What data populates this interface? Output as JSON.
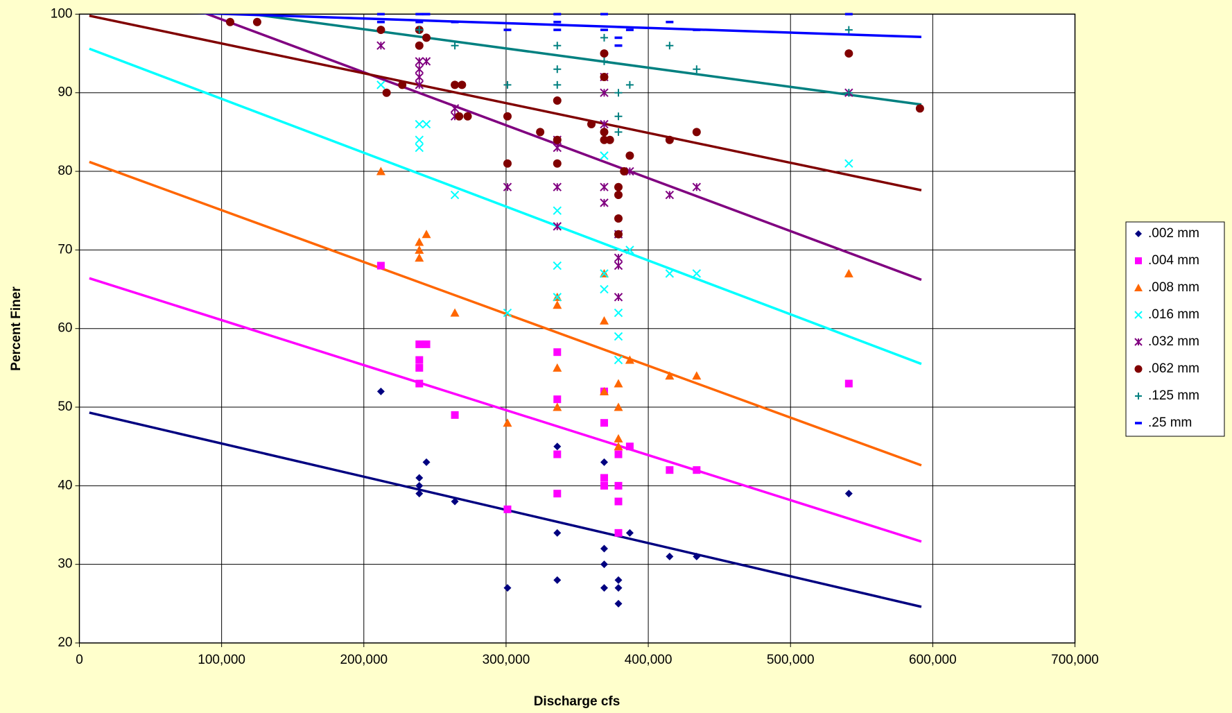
{
  "chart_data": {
    "type": "scatter",
    "x_label": "Discharge cfs",
    "y_label": "Percent Finer",
    "xlim": [
      0,
      700000
    ],
    "xticks": [
      0,
      {
        "value": 100000,
        "label": "100,000"
      },
      {
        "value": 200000,
        "label": "200,000"
      },
      {
        "value": 300000,
        "label": "300,000"
      },
      {
        "value": 400000,
        "label": "400,000"
      },
      {
        "value": 500000,
        "label": "500,000"
      },
      {
        "value": 600000,
        "label": "600,000"
      },
      {
        "value": 700000,
        "label": "700,000"
      }
    ],
    "ylim": [
      20,
      100
    ],
    "yticks": [
      20,
      30,
      40,
      50,
      60,
      70,
      80,
      90,
      100
    ],
    "grid": true,
    "legend": "right",
    "series": [
      {
        "name": ".002 mm",
        "color": "#000080",
        "marker": "diamond",
        "x": [
          212000,
          239000,
          239000,
          239000,
          244000,
          264000,
          301000,
          336000,
          336000,
          336000,
          369000,
          369000,
          369000,
          369000,
          379000,
          379000,
          379000,
          387000,
          415000,
          434000,
          541000
        ],
        "values": [
          52,
          41,
          40,
          39,
          43,
          38,
          27,
          45,
          34,
          28,
          43,
          32,
          30,
          27,
          28,
          27,
          25,
          34,
          31,
          31,
          39
        ],
        "trend_x": [
          7000,
          592000
        ],
        "trend_values": [
          49.3,
          24.6
        ]
      },
      {
        "name": ".004 mm",
        "color": "#FF00FF",
        "marker": "square",
        "x": [
          212000,
          239000,
          239000,
          239000,
          239000,
          244000,
          264000,
          301000,
          336000,
          336000,
          336000,
          336000,
          369000,
          369000,
          369000,
          369000,
          379000,
          379000,
          379000,
          379000,
          387000,
          415000,
          434000,
          541000
        ],
        "values": [
          68,
          58,
          56,
          55,
          53,
          58,
          49,
          37,
          57,
          51,
          44,
          39,
          52,
          48,
          41,
          40,
          44,
          40,
          38,
          34,
          45,
          42,
          42,
          53
        ],
        "trend_x": [
          7000,
          592000
        ],
        "trend_values": [
          66.4,
          32.9
        ]
      },
      {
        "name": ".008 mm",
        "color": "#FF6600",
        "marker": "triangle",
        "x": [
          212000,
          239000,
          239000,
          239000,
          244000,
          264000,
          301000,
          336000,
          336000,
          336000,
          336000,
          369000,
          369000,
          369000,
          379000,
          379000,
          379000,
          379000,
          387000,
          415000,
          434000,
          541000
        ],
        "values": [
          80,
          71,
          70,
          69,
          72,
          62,
          48,
          64,
          63,
          55,
          50,
          67,
          61,
          52,
          53,
          50,
          46,
          45,
          56,
          54,
          54,
          67
        ],
        "trend_x": [
          7000,
          592000
        ],
        "trend_values": [
          81.2,
          42.6
        ]
      },
      {
        "name": ".016 mm",
        "color": "#00FFFF",
        "marker": "x",
        "x": [
          212000,
          239000,
          239000,
          239000,
          244000,
          264000,
          301000,
          336000,
          336000,
          336000,
          369000,
          369000,
          369000,
          379000,
          379000,
          379000,
          379000,
          387000,
          415000,
          434000,
          541000
        ],
        "values": [
          91,
          86,
          84,
          83,
          86,
          77,
          62,
          75,
          68,
          64,
          82,
          67,
          65,
          62,
          59,
          56,
          72,
          70,
          67,
          67,
          81
        ],
        "trend_x": [
          7000,
          592000
        ],
        "trend_values": [
          95.6,
          55.5
        ]
      },
      {
        "name": ".032 mm",
        "color": "#800080",
        "marker": "asterisk",
        "x": [
          212000,
          239000,
          239000,
          239000,
          239000,
          244000,
          264000,
          264000,
          301000,
          336000,
          336000,
          336000,
          336000,
          369000,
          369000,
          369000,
          369000,
          369000,
          379000,
          379000,
          379000,
          379000,
          387000,
          415000,
          434000,
          541000
        ],
        "values": [
          96,
          94,
          93,
          92,
          91,
          94,
          88,
          87,
          78,
          84,
          83,
          78,
          73,
          92,
          90,
          86,
          78,
          76,
          72,
          69,
          68,
          64,
          80,
          77,
          78,
          90
        ],
        "trend_x": [
          7000,
          592000
        ],
        "trend_values": [
          105.6,
          66.2
        ]
      },
      {
        "name": ".062 mm",
        "color": "#800000",
        "marker": "circle",
        "x": [
          106000,
          125000,
          212000,
          216000,
          227000,
          239000,
          239000,
          244000,
          264000,
          269000,
          273000,
          267000,
          301000,
          301000,
          324000,
          336000,
          336000,
          336000,
          360000,
          369000,
          369000,
          369000,
          369000,
          373000,
          379000,
          379000,
          379000,
          379000,
          383000,
          387000,
          415000,
          434000,
          541000,
          591000
        ],
        "values": [
          99,
          99,
          98,
          90,
          91,
          98,
          96,
          97,
          91,
          91,
          87,
          87,
          87,
          81,
          85,
          89,
          84,
          81,
          86,
          95,
          92,
          85,
          84,
          84,
          78,
          77,
          74,
          72,
          80,
          82,
          84,
          85,
          95,
          88
        ],
        "trend_x": [
          7000,
          592000
        ],
        "trend_values": [
          99.8,
          77.6
        ]
      },
      {
        "name": ".125 mm",
        "color": "#008080",
        "marker": "plus",
        "x": [
          239000,
          264000,
          301000,
          336000,
          336000,
          336000,
          369000,
          369000,
          379000,
          379000,
          379000,
          387000,
          415000,
          434000,
          541000,
          541000
        ],
        "values": [
          98,
          96,
          91,
          96,
          93,
          91,
          97,
          94,
          90,
          87,
          85,
          91,
          96,
          93,
          98,
          90
        ],
        "trend_x": [
          7000,
          592000
        ],
        "trend_values": [
          102.8,
          88.5
        ]
      },
      {
        "name": ".25 mm",
        "color": "#0000FF",
        "marker": "dash",
        "x": [
          212000,
          212000,
          239000,
          239000,
          244000,
          264000,
          301000,
          336000,
          336000,
          336000,
          369000,
          369000,
          379000,
          379000,
          387000,
          415000,
          434000,
          541000
        ],
        "values": [
          100,
          99,
          100,
          99,
          100,
          99,
          98,
          100,
          99,
          98,
          100,
          98,
          97,
          96,
          98,
          99,
          98,
          100
        ],
        "trend_x": [
          7000,
          592000
        ],
        "trend_values": [
          100.6,
          97.1
        ]
      }
    ]
  }
}
